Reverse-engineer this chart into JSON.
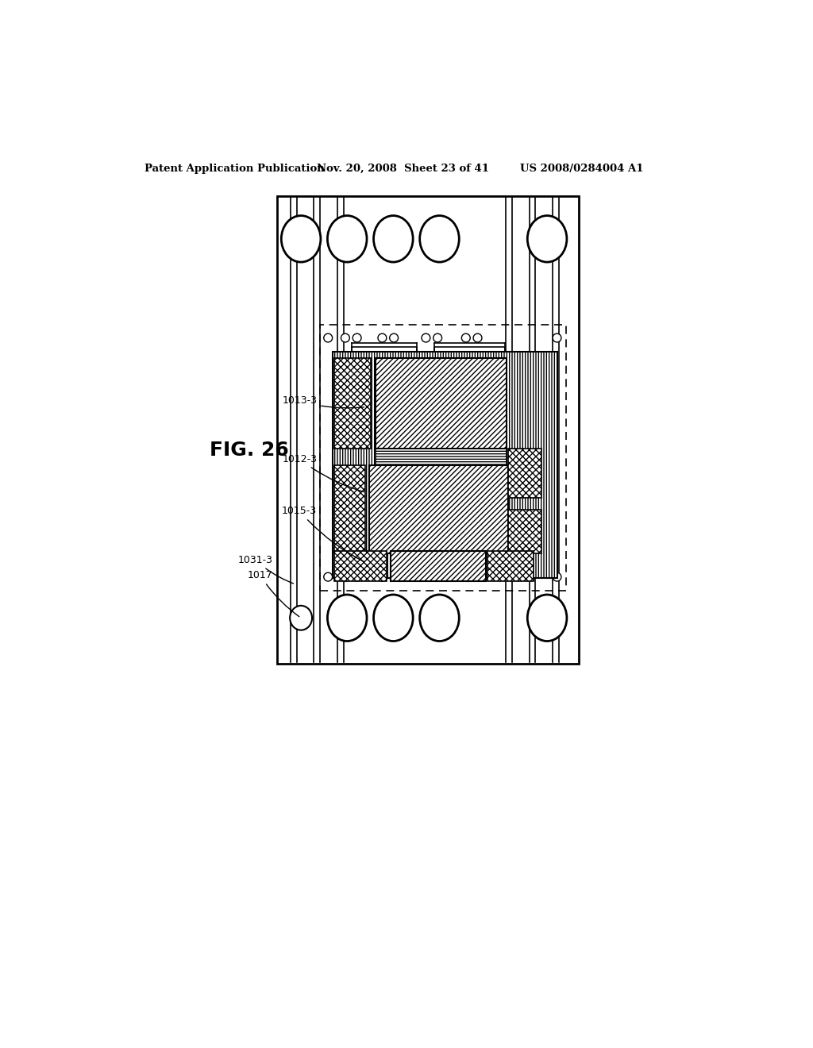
{
  "bg_color": "#ffffff",
  "header_left": "Patent Application Publication",
  "header_mid": "Nov. 20, 2008  Sheet 23 of 41",
  "header_right": "US 2008/0284004 A1",
  "fig_label": "FIG. 26"
}
